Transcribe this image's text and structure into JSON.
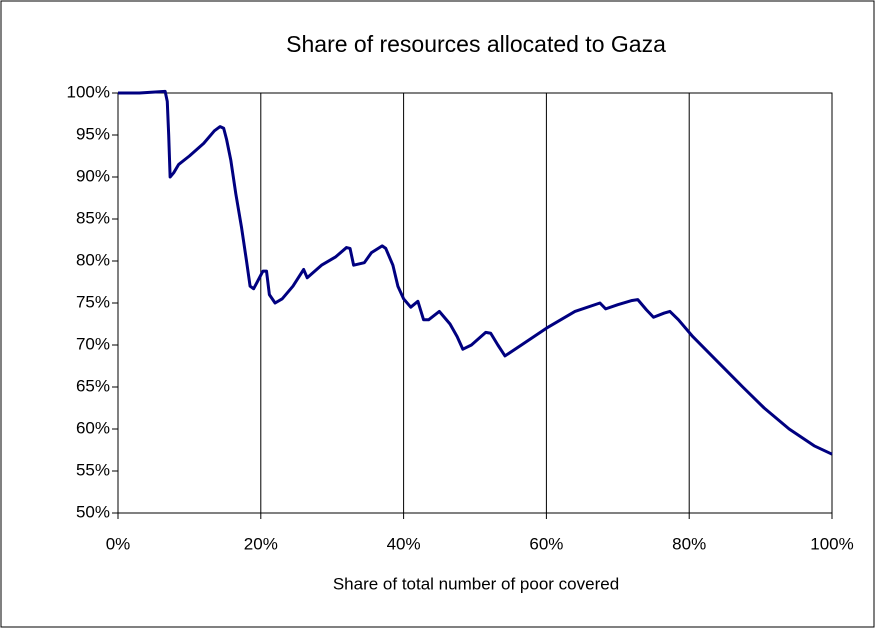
{
  "chart_data": {
    "type": "line",
    "title": "Share of resources allocated to Gaza",
    "xlabel": "Share of total number of poor covered",
    "xlim": [
      0,
      100
    ],
    "xticks": [
      {
        "value": 0,
        "label": "0%"
      },
      {
        "value": 20,
        "label": "20%"
      },
      {
        "value": 40,
        "label": "40%"
      },
      {
        "value": 60,
        "label": "60%"
      },
      {
        "value": 80,
        "label": "80%"
      },
      {
        "value": 100,
        "label": "100%"
      }
    ],
    "ylim": [
      50,
      100
    ],
    "yticks": [
      {
        "value": 50,
        "label": "50%"
      },
      {
        "value": 55,
        "label": "55%"
      },
      {
        "value": 60,
        "label": "60%"
      },
      {
        "value": 65,
        "label": "65%"
      },
      {
        "value": 70,
        "label": "70%"
      },
      {
        "value": 75,
        "label": "75%"
      },
      {
        "value": 80,
        "label": "80%"
      },
      {
        "value": 85,
        "label": "85%"
      },
      {
        "value": 90,
        "label": "90%"
      },
      {
        "value": 95,
        "label": "95%"
      },
      {
        "value": 100,
        "label": "100%"
      }
    ],
    "grid": "x",
    "color": "#000080",
    "x": [
      0,
      3,
      6.6,
      6.9,
      7.1,
      7.3,
      7.8,
      8.5,
      10,
      12,
      13.5,
      14.3,
      14.8,
      15.2,
      15.8,
      16.5,
      17.3,
      18,
      18.5,
      19,
      19.5,
      20.3,
      20.8,
      21.2,
      22,
      23,
      24.5,
      26,
      26.5,
      28.5,
      30.5,
      32,
      32.5,
      33,
      34.5,
      35.5,
      37,
      37.5,
      38.5,
      39.2,
      40,
      41,
      42,
      42.8,
      43.5,
      45,
      46.5,
      47.5,
      48.3,
      49.5,
      51.5,
      52.2,
      53.2,
      54.2,
      56.5,
      60,
      64,
      67.5,
      68.3,
      70,
      72,
      72.8,
      74,
      75,
      76.5,
      77.3,
      78.5,
      80.5,
      84,
      87.5,
      90.5,
      94,
      97.5,
      100
    ],
    "values": [
      100,
      100,
      100.2,
      99,
      95,
      90,
      90.5,
      91.5,
      92.5,
      94,
      95.5,
      96,
      95.8,
      94.5,
      92,
      88,
      84,
      80,
      77,
      76.7,
      77.5,
      78.8,
      78.8,
      76,
      75,
      75.5,
      77,
      79,
      78,
      79.5,
      80.5,
      81.6,
      81.5,
      79.5,
      79.8,
      81,
      81.8,
      81.5,
      79.5,
      77,
      75.5,
      74.5,
      75.2,
      73,
      73,
      74,
      72.5,
      71,
      69.5,
      70,
      71.5,
      71.4,
      70,
      68.7,
      70,
      72,
      74,
      75,
      74.3,
      74.8,
      75.3,
      75.4,
      74.2,
      73.3,
      73.8,
      74,
      73,
      71,
      68,
      65,
      62.5,
      60,
      58,
      57
    ]
  }
}
